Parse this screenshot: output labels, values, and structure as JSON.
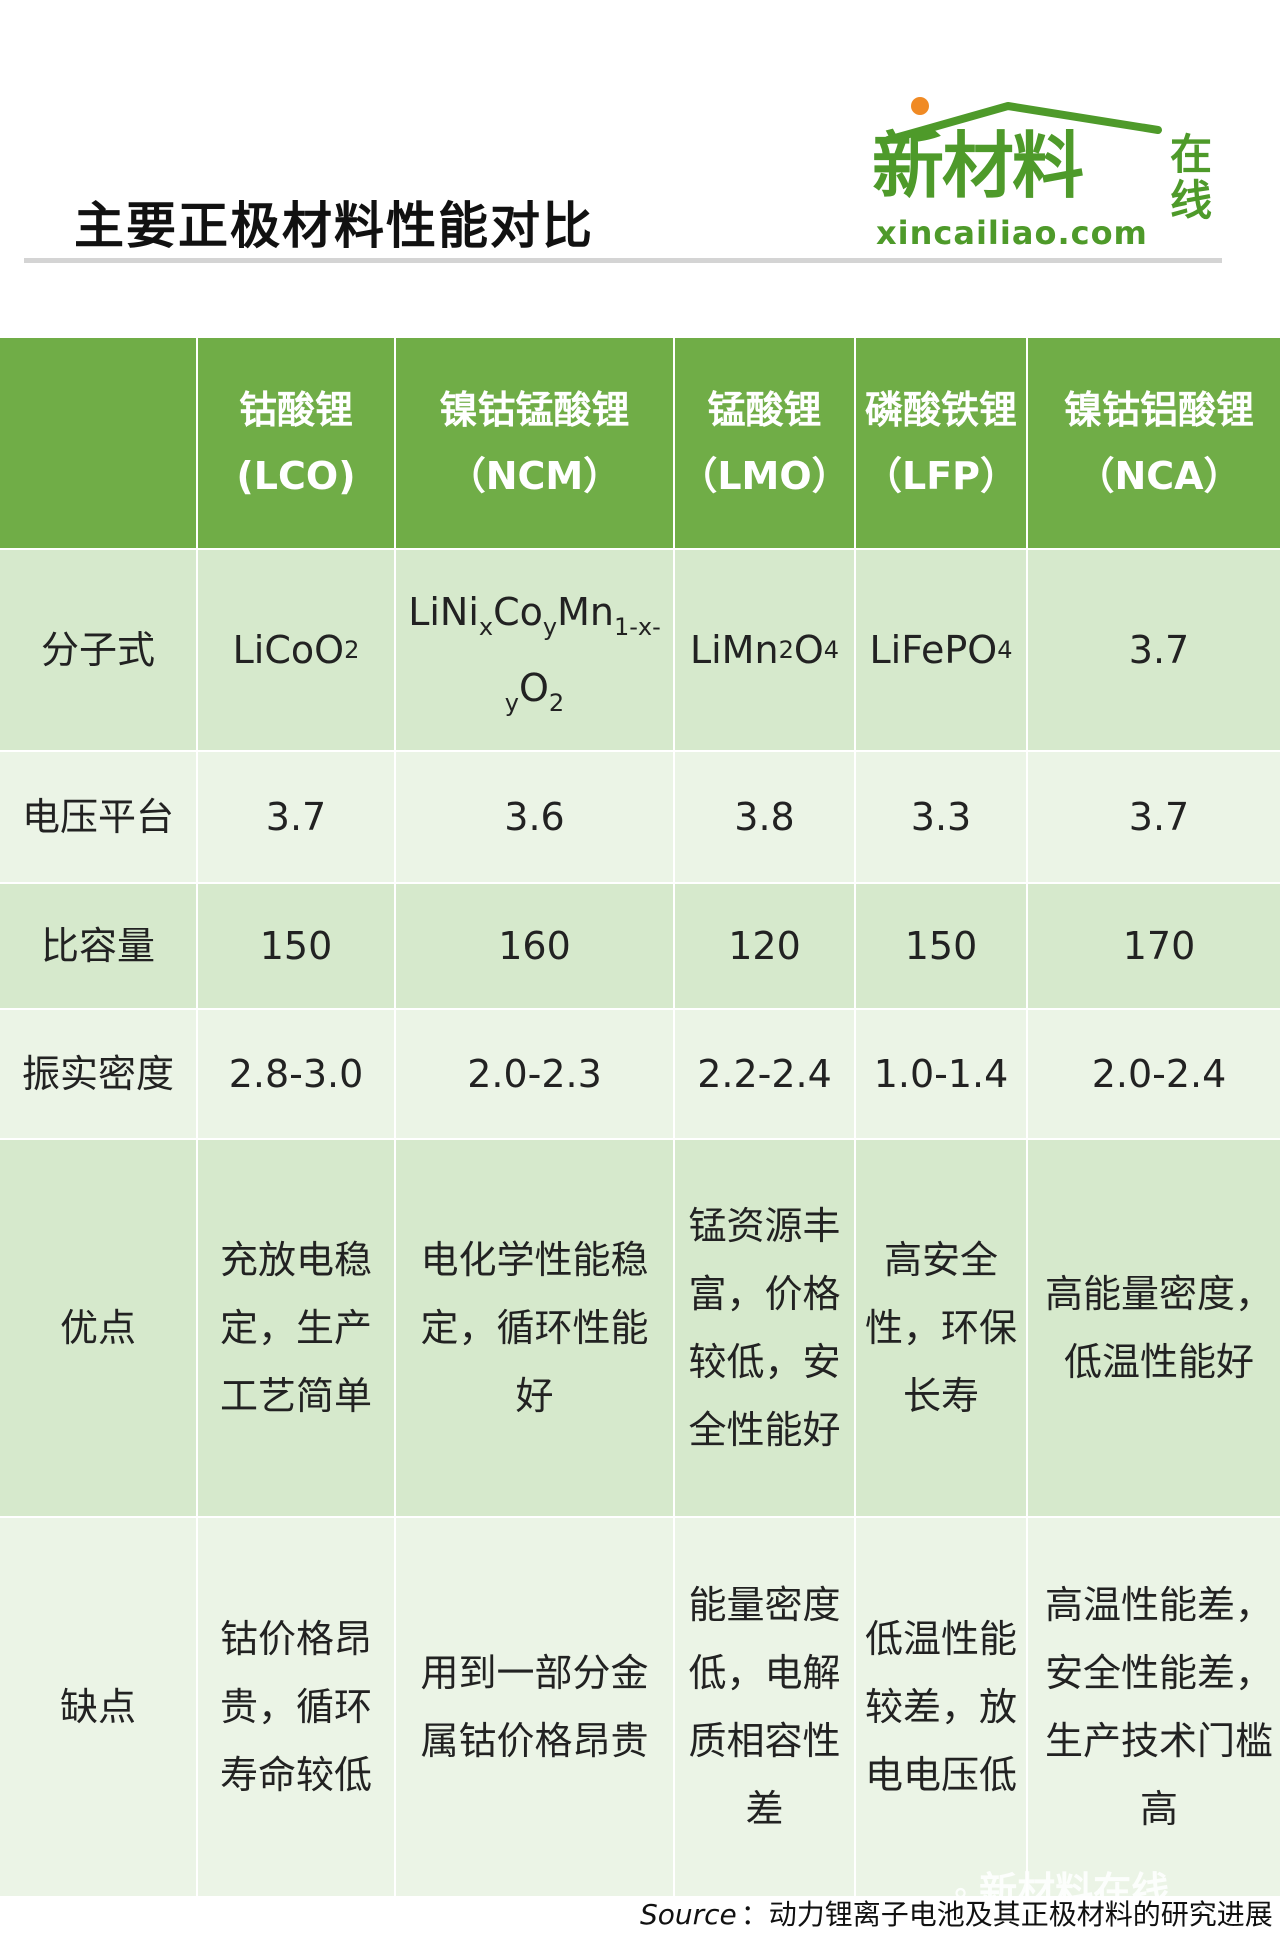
{
  "header": {
    "title": "主要正极材料性能对比",
    "logo_main": "新材料",
    "logo_side": "在线",
    "logo_domain": "xincailiao.com"
  },
  "table": {
    "columns": [
      {
        "name": "钴酸锂",
        "abbr": "(LCO)"
      },
      {
        "name": "镍钴锰酸锂",
        "abbr": "（NCM）"
      },
      {
        "name": "锰酸锂",
        "abbr": "（LMO）"
      },
      {
        "name": "磷酸铁锂",
        "abbr": "（LFP）"
      },
      {
        "name": "镍钴铝酸锂",
        "abbr": "（NCA）"
      }
    ],
    "row_labels": {
      "formula": "分子式",
      "voltage": "电压平台",
      "capacity": "比容量",
      "density": "振实密度",
      "pros": "优点",
      "cons": "缺点"
    },
    "formula": {
      "lco": {
        "base": "LiCoO",
        "sub": "2"
      },
      "ncm": {
        "p1": "LiNi",
        "s1": "x",
        "p2": "Co",
        "s2": "y",
        "p3": "Mn",
        "s3": "1-x-",
        "s4": "y",
        "p4": "O",
        "s5": "2"
      },
      "lmo": {
        "p1": "LiMn",
        "s1": "2",
        "p2": "O",
        "s2": "4"
      },
      "lfp": {
        "base": "LiFePO",
        "sub": "4"
      },
      "nca": "3.7"
    },
    "voltage": [
      "3.7",
      "3.6",
      "3.8",
      "3.3",
      "3.7"
    ],
    "capacity": [
      "150",
      "160",
      "120",
      "150",
      "170"
    ],
    "density": [
      "2.8-3.0",
      "2.0-2.3",
      "2.2-2.4",
      "1.0-1.4",
      "2.0-2.4"
    ],
    "pros": [
      "充放电稳定，生产工艺简单",
      "电化学性能稳定，循环性能好",
      "锰资源丰富，价格较低，安全性能好",
      "高安全性，环保长寿",
      "高能量密度，低温性能好"
    ],
    "cons": [
      "钴价格昂贵，循环寿命较低",
      "用到一部分金属钴价格昂贵",
      "能量密度低，电解质相容性差",
      "低温性能较差，放电电压低",
      "高温性能差，安全性能差，生产技术门槛高"
    ]
  },
  "footer": {
    "source_label": "Source",
    "source_text": "：动力锂离子电池及其正极材料的研究进展"
  },
  "watermark": "新材料在线",
  "colors": {
    "header_green": "#70ad47",
    "row_dark": "#d6e9cc",
    "row_light": "#ebf4e6",
    "logo_green": "#4e9a2a",
    "logo_dot": "#f08a24"
  }
}
